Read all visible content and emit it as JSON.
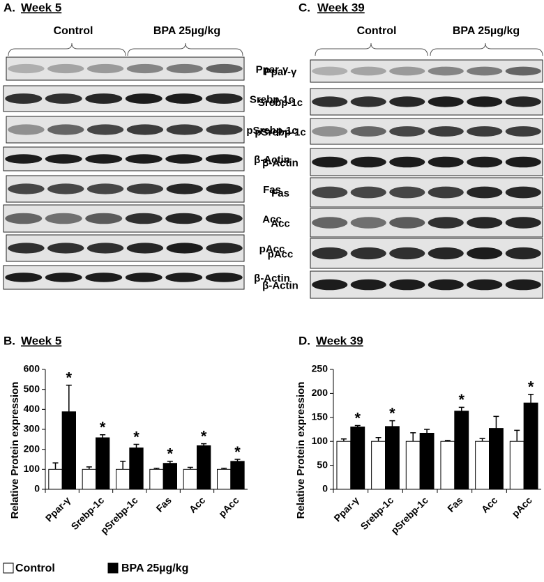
{
  "panel_a": {
    "label": "A.",
    "title": "Week 5",
    "groups": [
      "Control",
      "BPA 25µg/kg"
    ],
    "proteins": [
      "Ppar-γ",
      "Srebp-1c",
      "pSrebp-1c",
      "β-Actin",
      "Fas",
      "Acc",
      "pAcc",
      "β-Actin"
    ]
  },
  "panel_c": {
    "label": "C.",
    "title": "Week 39",
    "groups": [
      "Control",
      "BPA 25µg/kg"
    ],
    "proteins": [
      "Ppar-γ",
      "Srebp-1c",
      "pSrebp-1c",
      "β-Actin",
      "Fas",
      "Acc",
      "pAcc",
      "β-Actin"
    ]
  },
  "chart_data": [
    {
      "type": "bar",
      "label": "B.",
      "title": "Week 5",
      "y_label": "Relative Protein expression",
      "categories": [
        "Ppar-γ",
        "Srebp-1c",
        "pSrebp-1c",
        "Fas",
        "Acc",
        "pAcc"
      ],
      "series": [
        {
          "name": "Control",
          "color": "#ffffff",
          "values": [
            100,
            100,
            100,
            100,
            100,
            100
          ],
          "errors": [
            32,
            12,
            40,
            5,
            10,
            5
          ]
        },
        {
          "name": "BPA 25µg/kg",
          "color": "#000000",
          "values": [
            388,
            258,
            207,
            130,
            218,
            140
          ],
          "errors": [
            133,
            15,
            18,
            10,
            10,
            10
          ],
          "significance": [
            "*",
            "*",
            "*",
            "*",
            "*",
            "*"
          ]
        }
      ],
      "ylim": [
        0,
        600
      ],
      "yticks": [
        0,
        100,
        200,
        300,
        400,
        500,
        600
      ]
    },
    {
      "type": "bar",
      "label": "D.",
      "title": "Week 39",
      "y_label": "Relative Protein expression",
      "categories": [
        "Ppar-γ",
        "Srebp-1c",
        "pSrebp-1c",
        "Fas",
        "Acc",
        "pAcc"
      ],
      "series": [
        {
          "name": "Control",
          "color": "#ffffff",
          "values": [
            100,
            100,
            100,
            100,
            100,
            100
          ],
          "errors": [
            5,
            8,
            18,
            2,
            6,
            23
          ]
        },
        {
          "name": "BPA 25µg/kg",
          "color": "#000000",
          "values": [
            130,
            131,
            117,
            163,
            127,
            180
          ],
          "errors": [
            3,
            12,
            8,
            8,
            25,
            18
          ],
          "significance": [
            "*",
            "*",
            null,
            "*",
            null,
            "*"
          ]
        }
      ],
      "ylim": [
        0,
        250
      ],
      "yticks": [
        0,
        50,
        100,
        150,
        200,
        250
      ]
    }
  ]
}
